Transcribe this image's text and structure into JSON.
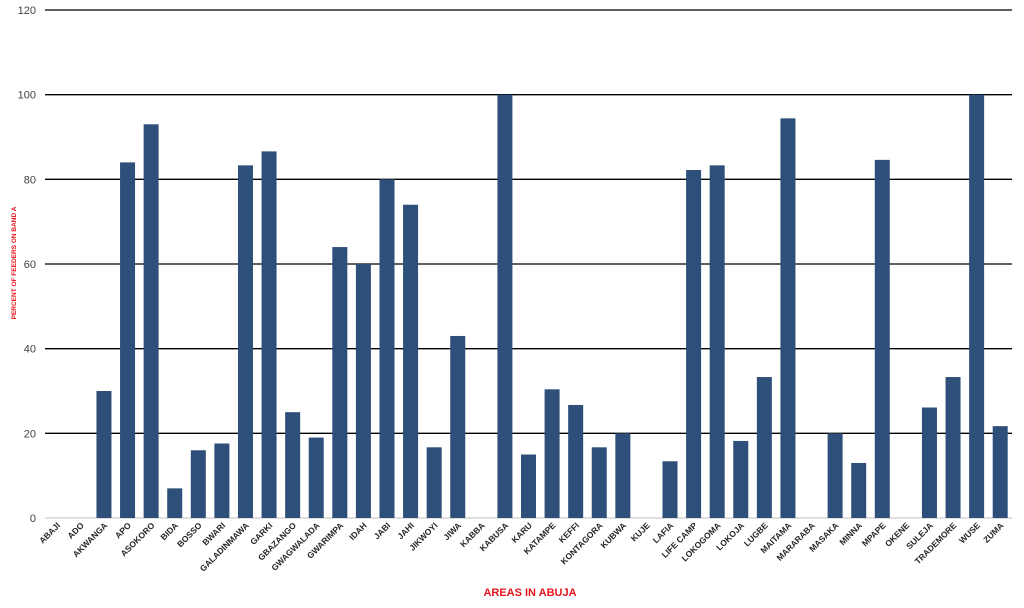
{
  "chart_data": {
    "type": "bar",
    "title": "",
    "xlabel": "AREAS IN ABUJA",
    "ylabel": "PERCENT OF FEEDERS ON BAND A",
    "ylim": [
      0,
      120
    ],
    "yticks": [
      0,
      20,
      40,
      60,
      80,
      100,
      120
    ],
    "grid": true,
    "categories": [
      "ABAJI",
      "ADO",
      "AKWANGA",
      "APO",
      "ASOKORO",
      "BIDA",
      "BOSSO",
      "BWARI",
      "GALADINMAWA",
      "GARKI",
      "GBAZANGO",
      "GWAGWALADA",
      "GWARIMPA",
      "IDAH",
      "JABI",
      "JAHI",
      "JIKWOYI",
      "JIWA",
      "KABBA",
      "KABUSA",
      "KARU",
      "KATAMPE",
      "KEFFI",
      "KONTAGORA",
      "KUBWA",
      "KUJE",
      "LAFIA",
      "LIFE CAMP",
      "LOKOGOMA",
      "LOKOJA",
      "LUGBE",
      "MAITAMA",
      "MARARABA",
      "MASAKA",
      "MINNA",
      "MPAPE",
      "OKENE",
      "SULEJA",
      "TRADEMORE",
      "WUSE",
      "ZUMA"
    ],
    "values": [
      0,
      0,
      30,
      84,
      93,
      7,
      16,
      17.6,
      83.3,
      86.6,
      25,
      19,
      64,
      60,
      80,
      74,
      16.7,
      43,
      0,
      100,
      15,
      30.4,
      26.7,
      16.7,
      20,
      0,
      13.4,
      82.2,
      83.3,
      18.2,
      33.3,
      94.4,
      0,
      20,
      13,
      84.6,
      0,
      26.1,
      33.3,
      100,
      21.7
    ],
    "colors": {
      "bar": "#2e4f79",
      "axis_label": "#e8141b",
      "grid": "#000000"
    }
  }
}
